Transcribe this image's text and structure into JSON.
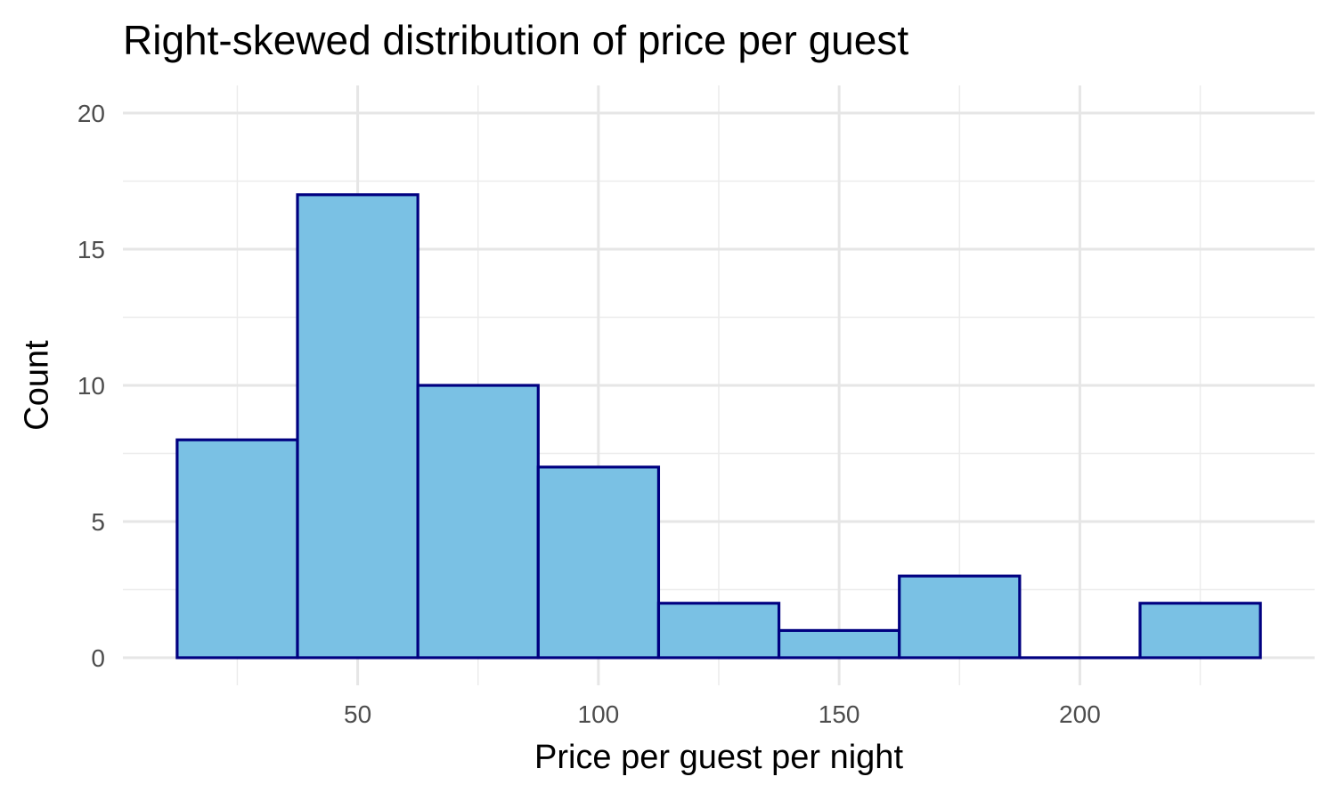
{
  "chart_data": {
    "type": "bar",
    "subtype": "histogram",
    "title": "Right-skewed distribution of price per guest",
    "xlabel": "Price per guest per night",
    "ylabel": "Count",
    "bin_edges": [
      12.5,
      37.5,
      62.5,
      87.5,
      112.5,
      137.5,
      162.5,
      187.5,
      212.5,
      237.5
    ],
    "values": [
      8,
      17,
      10,
      7,
      2,
      1,
      3,
      0,
      2
    ],
    "xlim": [
      0.5,
      249.5
    ],
    "ylim": [
      0,
      20
    ],
    "x_ticks": [
      50,
      100,
      150,
      200
    ],
    "y_ticks": [
      0,
      5,
      10,
      15,
      20
    ],
    "grid": true,
    "colors": {
      "bar_fill": "#7ac1e4",
      "bar_outline": "#000080",
      "grid": "#e6e6e6",
      "tick_text": "#4d4d4d"
    }
  }
}
